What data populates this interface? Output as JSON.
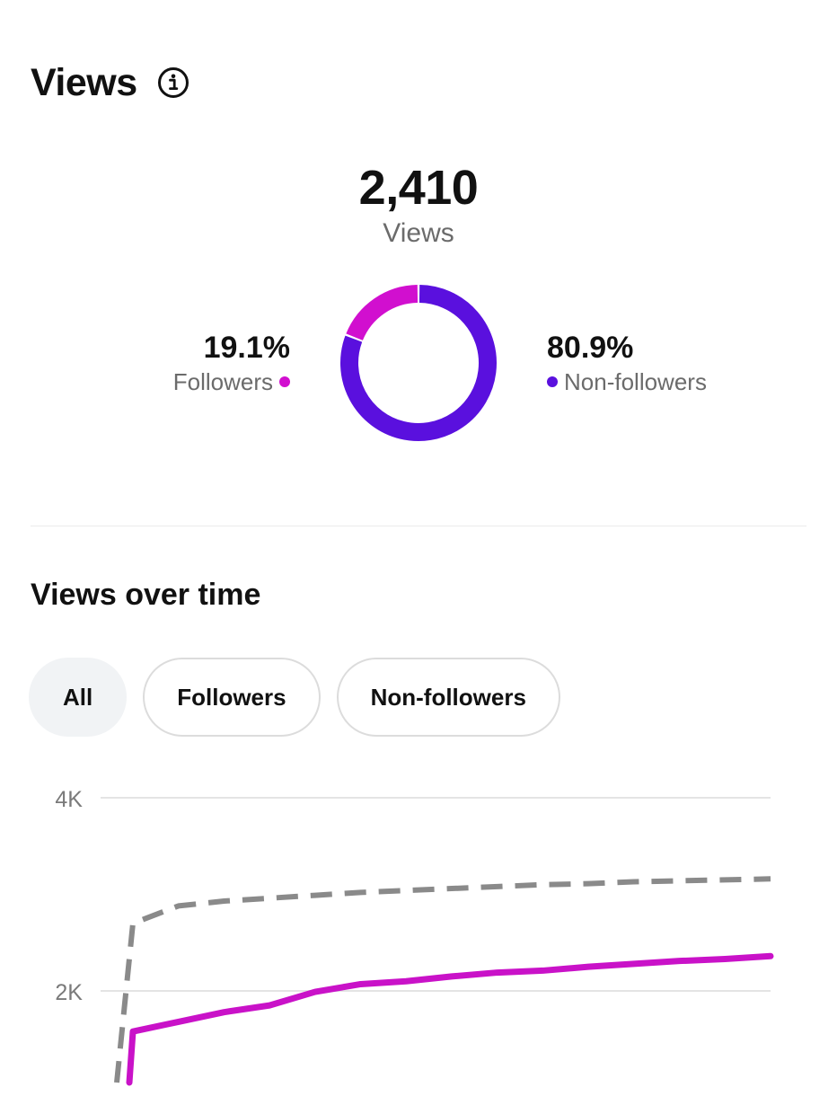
{
  "header": {
    "title": "Views",
    "info_icon": "info-icon"
  },
  "summary": {
    "total_value": "2,410",
    "total_label": "Views"
  },
  "breakdown": {
    "followers": {
      "percent": "19.1%",
      "label": "Followers",
      "color": "#d10fcf"
    },
    "non_followers": {
      "percent": "80.9%",
      "label": "Non-followers",
      "color": "#5a10de"
    }
  },
  "over_time": {
    "title": "Views over time",
    "filters": [
      {
        "label": "All",
        "active": true
      },
      {
        "label": "Followers",
        "active": false
      },
      {
        "label": "Non-followers",
        "active": false
      }
    ]
  },
  "chart_data": [
    {
      "type": "pie",
      "categories": [
        "Followers",
        "Non-followers"
      ],
      "values": [
        19.1,
        80.9
      ],
      "colors": [
        "#d10fcf",
        "#5a10de"
      ],
      "donut": true
    },
    {
      "type": "line",
      "x": [
        0,
        1,
        2,
        3,
        4,
        5,
        6,
        7,
        8,
        9,
        10,
        11,
        12,
        13,
        14,
        15
      ],
      "yticks": [
        "2K",
        "4K"
      ],
      "ylim": [
        0,
        4000
      ],
      "grid": true,
      "series": [
        {
          "style": "dashed",
          "color": "#8a8a8a",
          "values": [
            1200,
            2700,
            2880,
            2930,
            2960,
            2990,
            3020,
            3040,
            3060,
            3080,
            3100,
            3110,
            3130,
            3140,
            3150,
            3160
          ]
        },
        {
          "style": "solid",
          "color": "#c912c8",
          "values": [
            1200,
            1580,
            1680,
            1780,
            1850,
            1990,
            2070,
            2100,
            2150,
            2190,
            2210,
            2250,
            2280,
            2310,
            2330,
            2360
          ]
        }
      ]
    }
  ]
}
